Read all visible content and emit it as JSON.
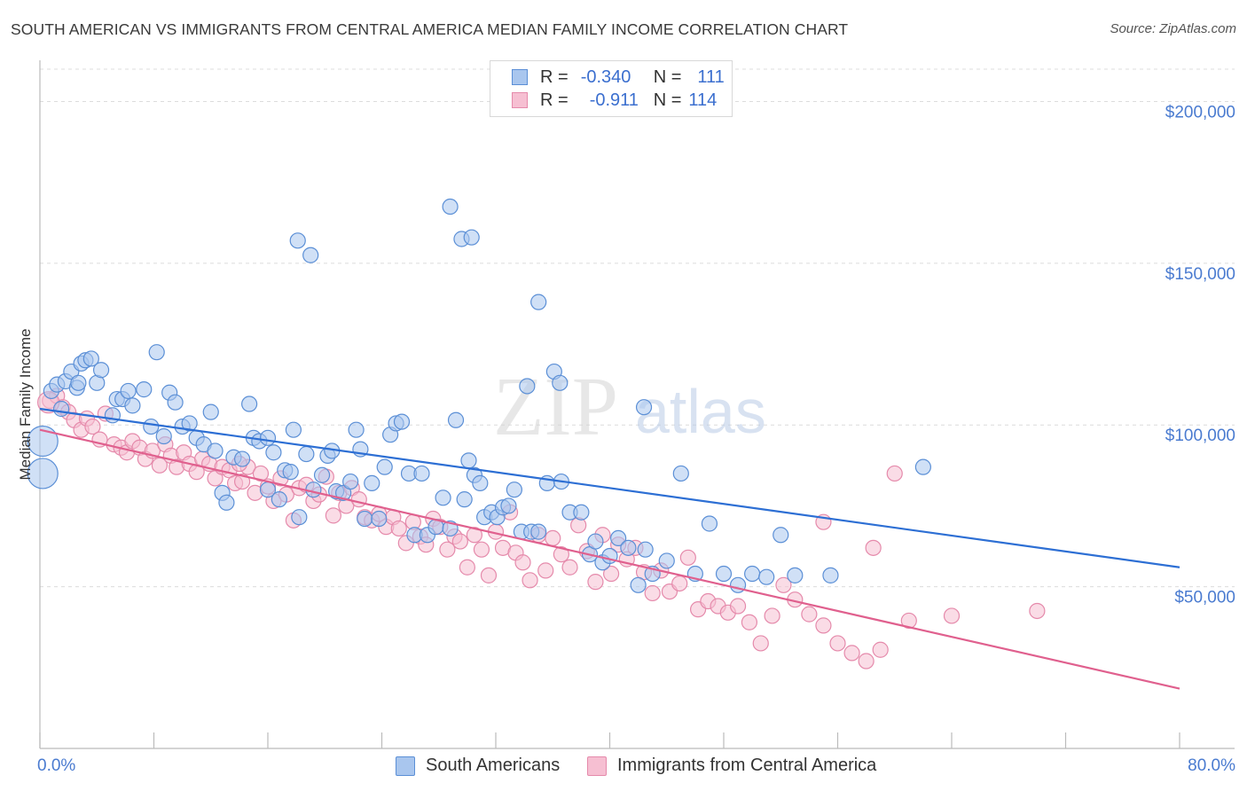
{
  "title": "SOUTH AMERICAN VS IMMIGRANTS FROM CENTRAL AMERICA MEDIAN FAMILY INCOME CORRELATION CHART",
  "source": "Source: ZipAtlas.com",
  "watermark": {
    "zip": "ZIP",
    "atlas": "atlas"
  },
  "colors": {
    "blue_fill": "#a9c6ee",
    "blue_stroke": "#5b8fd6",
    "blue_line": "#2d6fd4",
    "pink_fill": "#f6bfd2",
    "pink_stroke": "#e58aab",
    "pink_line": "#e0608e",
    "tick_text": "#4a7bd0",
    "grid": "#dcdcdc"
  },
  "legend_top": [
    {
      "r_label": "R =",
      "r_value": "-0.340",
      "n_label": "N =",
      "n_value": "111",
      "color": "blue"
    },
    {
      "r_label": "R =",
      "r_value": "-0.911",
      "n_label": "N =",
      "n_value": "114",
      "color": "pink"
    }
  ],
  "legend_bottom": [
    "South Americans",
    "Immigrants from Central America"
  ],
  "chart_data": {
    "type": "scatter",
    "title": "SOUTH AMERICAN VS IMMIGRANTS FROM CENTRAL AMERICA MEDIAN FAMILY INCOME CORRELATION CHART",
    "xlabel": "",
    "ylabel": "Median Family Income",
    "xlim": [
      0,
      80
    ],
    "ylim": [
      0,
      210000
    ],
    "x_tick_labels": [
      "0.0%",
      "80.0%"
    ],
    "y_ticks": [
      50000,
      100000,
      150000,
      200000
    ],
    "y_tick_labels": [
      "$50,000",
      "$100,000",
      "$150,000",
      "$200,000"
    ],
    "grid": true,
    "legend_position": "top-center",
    "series": [
      {
        "name": "South Americans",
        "color": "blue",
        "trend": {
          "x0": 0,
          "y0": 105000,
          "x1": 80,
          "y1": 56000
        },
        "points": [
          [
            0.8,
            110500
          ],
          [
            1.2,
            112500
          ],
          [
            1.5,
            105000
          ],
          [
            1.8,
            113500
          ],
          [
            2.2,
            116500
          ],
          [
            2.6,
            111500
          ],
          [
            2.9,
            119000
          ],
          [
            3.2,
            120000
          ],
          [
            3.6,
            120500
          ],
          [
            4.0,
            113000
          ],
          [
            4.3,
            117000
          ],
          [
            2.7,
            113000
          ],
          [
            5.1,
            103000
          ],
          [
            5.4,
            108000
          ],
          [
            5.8,
            108000
          ],
          [
            6.2,
            110500
          ],
          [
            6.5,
            106000
          ],
          [
            7.3,
            111000
          ],
          [
            7.8,
            99500
          ],
          [
            8.2,
            122500
          ],
          [
            8.7,
            96500
          ],
          [
            9.1,
            110000
          ],
          [
            9.5,
            107000
          ],
          [
            10.0,
            99500
          ],
          [
            10.5,
            100500
          ],
          [
            11.0,
            96000
          ],
          [
            11.5,
            94000
          ],
          [
            12.0,
            104000
          ],
          [
            12.3,
            92000
          ],
          [
            12.8,
            79000
          ],
          [
            13.1,
            76000
          ],
          [
            13.6,
            90000
          ],
          [
            14.2,
            89500
          ],
          [
            14.7,
            106500
          ],
          [
            15.0,
            96000
          ],
          [
            15.4,
            95000
          ],
          [
            16.0,
            80000
          ],
          [
            16.4,
            91500
          ],
          [
            16.0,
            96000
          ],
          [
            16.8,
            77000
          ],
          [
            17.2,
            86000
          ],
          [
            17.6,
            85500
          ],
          [
            17.8,
            98500
          ],
          [
            18.2,
            71500
          ],
          [
            18.7,
            91000
          ],
          [
            19.2,
            80000
          ],
          [
            19.8,
            84500
          ],
          [
            20.2,
            90500
          ],
          [
            20.5,
            92000
          ],
          [
            20.8,
            79500
          ],
          [
            21.3,
            79000
          ],
          [
            21.8,
            82500
          ],
          [
            22.2,
            98500
          ],
          [
            22.5,
            92500
          ],
          [
            22.8,
            71000
          ],
          [
            23.3,
            82000
          ],
          [
            23.8,
            71000
          ],
          [
            24.2,
            87000
          ],
          [
            24.6,
            97000
          ],
          [
            25.0,
            100500
          ],
          [
            25.4,
            101000
          ],
          [
            25.9,
            85000
          ],
          [
            26.3,
            66000
          ],
          [
            26.8,
            85000
          ],
          [
            27.2,
            66000
          ],
          [
            27.8,
            68500
          ],
          [
            28.3,
            77500
          ],
          [
            28.8,
            68000
          ],
          [
            29.2,
            101500
          ],
          [
            29.8,
            77000
          ],
          [
            30.1,
            89000
          ],
          [
            30.5,
            84500
          ],
          [
            30.9,
            82000
          ],
          [
            31.2,
            71500
          ],
          [
            31.7,
            73000
          ],
          [
            32.1,
            71500
          ],
          [
            32.5,
            74500
          ],
          [
            32.9,
            75000
          ],
          [
            33.3,
            80000
          ],
          [
            33.8,
            67000
          ],
          [
            34.5,
            67000
          ],
          [
            35.0,
            67000
          ],
          [
            35.6,
            82000
          ],
          [
            36.1,
            116500
          ],
          [
            36.6,
            82500
          ],
          [
            37.2,
            73000
          ],
          [
            38.0,
            73000
          ],
          [
            38.6,
            60000
          ],
          [
            39.0,
            64000
          ],
          [
            39.5,
            57500
          ],
          [
            40.0,
            59500
          ],
          [
            40.6,
            65000
          ],
          [
            41.3,
            62000
          ],
          [
            42.0,
            50500
          ],
          [
            42.5,
            61500
          ],
          [
            43.0,
            54000
          ],
          [
            44.0,
            58000
          ],
          [
            45.0,
            85000
          ],
          [
            46.0,
            54000
          ],
          [
            47.0,
            69500
          ],
          [
            48.0,
            54000
          ],
          [
            49.0,
            50500
          ],
          [
            50.0,
            54000
          ],
          [
            51.0,
            53000
          ],
          [
            52.0,
            66000
          ],
          [
            53.0,
            53500
          ],
          [
            18.1,
            157000
          ],
          [
            19.0,
            152500
          ],
          [
            28.8,
            167500
          ],
          [
            29.6,
            157500
          ],
          [
            30.3,
            158000
          ],
          [
            35.0,
            138000
          ],
          [
            34.2,
            112000
          ],
          [
            36.5,
            113000
          ],
          [
            42.4,
            105500
          ],
          [
            55.5,
            53500
          ],
          [
            62.0,
            87000
          ]
        ]
      },
      {
        "name": "Immigrants from Central America",
        "color": "pink",
        "trend": {
          "x0": 0,
          "y0": 98500,
          "x1": 80,
          "y1": 18500
        },
        "points": [
          [
            0.7,
            107500
          ],
          [
            1.2,
            109000
          ],
          [
            1.6,
            105500
          ],
          [
            2.0,
            104000
          ],
          [
            2.4,
            101500
          ],
          [
            2.9,
            98500
          ],
          [
            3.3,
            102000
          ],
          [
            3.7,
            99500
          ],
          [
            4.2,
            95500
          ],
          [
            4.6,
            103500
          ],
          [
            5.2,
            94000
          ],
          [
            5.7,
            93000
          ],
          [
            6.1,
            91500
          ],
          [
            6.5,
            95000
          ],
          [
            7.0,
            93000
          ],
          [
            7.4,
            89500
          ],
          [
            7.9,
            92000
          ],
          [
            8.4,
            87500
          ],
          [
            8.8,
            94000
          ],
          [
            9.2,
            90500
          ],
          [
            9.6,
            87000
          ],
          [
            10.1,
            91500
          ],
          [
            10.5,
            88000
          ],
          [
            11.0,
            85500
          ],
          [
            11.4,
            89500
          ],
          [
            11.9,
            88000
          ],
          [
            12.3,
            83500
          ],
          [
            12.8,
            87000
          ],
          [
            13.3,
            86000
          ],
          [
            13.7,
            82000
          ],
          [
            14.2,
            82500
          ],
          [
            14.6,
            87000
          ],
          [
            15.1,
            79000
          ],
          [
            15.5,
            85000
          ],
          [
            16.0,
            81000
          ],
          [
            16.4,
            76500
          ],
          [
            16.9,
            83500
          ],
          [
            17.3,
            78500
          ],
          [
            17.8,
            70500
          ],
          [
            18.2,
            80500
          ],
          [
            18.7,
            81500
          ],
          [
            19.2,
            76500
          ],
          [
            19.6,
            78500
          ],
          [
            20.1,
            84000
          ],
          [
            20.6,
            72000
          ],
          [
            21.0,
            79000
          ],
          [
            21.5,
            75000
          ],
          [
            21.9,
            80500
          ],
          [
            22.4,
            77000
          ],
          [
            22.8,
            71500
          ],
          [
            23.3,
            70500
          ],
          [
            23.8,
            72500
          ],
          [
            24.3,
            68500
          ],
          [
            24.8,
            71500
          ],
          [
            25.2,
            68000
          ],
          [
            25.7,
            63500
          ],
          [
            26.2,
            70000
          ],
          [
            26.7,
            65500
          ],
          [
            27.1,
            63000
          ],
          [
            27.6,
            71000
          ],
          [
            28.1,
            68500
          ],
          [
            28.6,
            61500
          ],
          [
            29.1,
            65500
          ],
          [
            29.5,
            64000
          ],
          [
            30.0,
            56000
          ],
          [
            30.5,
            66000
          ],
          [
            31.0,
            61500
          ],
          [
            31.5,
            53500
          ],
          [
            32.0,
            67000
          ],
          [
            32.5,
            62000
          ],
          [
            33.0,
            73000
          ],
          [
            33.4,
            60500
          ],
          [
            33.9,
            57500
          ],
          [
            34.4,
            52000
          ],
          [
            35.0,
            66000
          ],
          [
            35.5,
            55000
          ],
          [
            36.0,
            65000
          ],
          [
            36.6,
            60000
          ],
          [
            37.2,
            56000
          ],
          [
            37.8,
            69000
          ],
          [
            38.4,
            61000
          ],
          [
            39.0,
            51500
          ],
          [
            39.5,
            66000
          ],
          [
            40.1,
            54000
          ],
          [
            40.6,
            63000
          ],
          [
            41.2,
            58500
          ],
          [
            41.8,
            62000
          ],
          [
            42.4,
            54500
          ],
          [
            43.0,
            48000
          ],
          [
            43.6,
            55000
          ],
          [
            44.2,
            48500
          ],
          [
            44.9,
            51000
          ],
          [
            45.5,
            59000
          ],
          [
            46.2,
            43000
          ],
          [
            46.9,
            45500
          ],
          [
            47.6,
            44000
          ],
          [
            48.3,
            42000
          ],
          [
            49.0,
            44000
          ],
          [
            49.8,
            39000
          ],
          [
            50.6,
            32500
          ],
          [
            51.4,
            41000
          ],
          [
            52.2,
            50500
          ],
          [
            53.0,
            46000
          ],
          [
            54.0,
            41500
          ],
          [
            55.0,
            38000
          ],
          [
            56.0,
            32500
          ],
          [
            57.0,
            29500
          ],
          [
            58.0,
            27000
          ],
          [
            59.0,
            30500
          ],
          [
            61.0,
            39500
          ],
          [
            64.0,
            41000
          ],
          [
            70.0,
            42500
          ],
          [
            60.0,
            85000
          ],
          [
            55.0,
            70000
          ],
          [
            58.5,
            62000
          ],
          [
            14.0,
            88000
          ]
        ]
      }
    ]
  }
}
